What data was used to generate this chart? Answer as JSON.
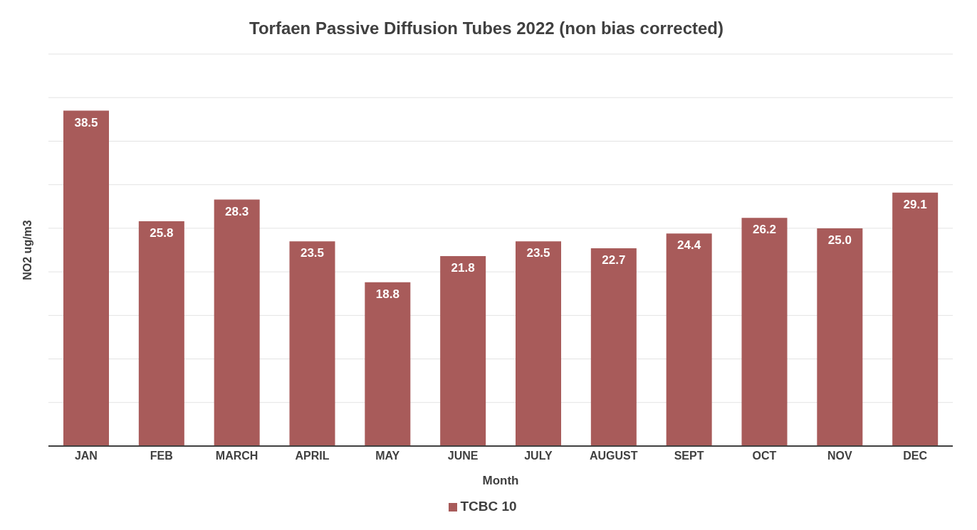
{
  "chart_data": {
    "type": "bar",
    "title": "Torfaen Passive Diffusion Tubes 2022 (non bias corrected)",
    "xlabel": "Month",
    "ylabel": "NO2 ug/m3",
    "categories": [
      "JAN",
      "FEB",
      "MARCH",
      "APRIL",
      "MAY",
      "JUNE",
      "JULY",
      "AUGUST",
      "SEPT",
      "OCT",
      "NOV",
      "DEC"
    ],
    "series": [
      {
        "name": "TCBC 10",
        "color": "#a85b5a",
        "values": [
          38.5,
          25.8,
          28.3,
          23.5,
          18.8,
          21.8,
          23.5,
          22.7,
          24.4,
          26.2,
          25.0,
          29.1
        ],
        "value_labels": [
          "38.5",
          "25.8",
          "28.3",
          "23.5",
          "18.8",
          "21.8",
          "23.5",
          "22.7",
          "24.4",
          "26.2",
          "25.0",
          "29.1"
        ]
      }
    ],
    "ylim": [
      0,
      45
    ],
    "yticks": [
      {
        "value": 0,
        "label": null
      },
      {
        "value": 5,
        "label": null
      },
      {
        "value": 10,
        "label": null
      },
      {
        "value": 15,
        "label": null
      },
      {
        "value": 20,
        "label": null
      },
      {
        "value": 25,
        "label": null
      },
      {
        "value": 30,
        "label": null
      },
      {
        "value": 35,
        "label": null
      },
      {
        "value": 40,
        "label": null
      },
      {
        "value": 45,
        "label": null
      }
    ],
    "tick_labels": "x",
    "grid": "y",
    "legend": "bottom"
  }
}
